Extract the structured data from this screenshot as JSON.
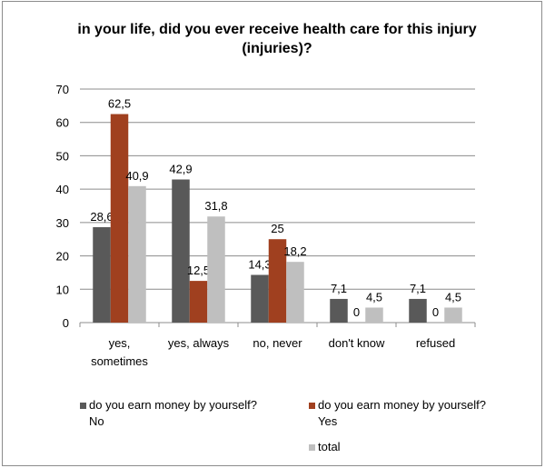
{
  "chart_data": {
    "type": "bar",
    "title": "in your life, did you ever receive health care for this injury (injuries)?",
    "categories": [
      [
        "yes,",
        "sometimes"
      ],
      [
        "yes, always"
      ],
      [
        "no, never"
      ],
      [
        "don't know"
      ],
      [
        "refused"
      ]
    ],
    "series": [
      {
        "name": "do you earn money by yourself? No",
        "color": "#595959",
        "values": [
          28.6,
          42.9,
          14.3,
          7.1,
          7.1
        ],
        "labels": [
          "28,6",
          "42,9",
          "14,3",
          "7,1",
          "7,1"
        ]
      },
      {
        "name": "do you earn money by yourself? Yes",
        "color": "#a0401f",
        "values": [
          62.5,
          12.5,
          25,
          0,
          0
        ],
        "labels": [
          "62,5",
          "12,5",
          "25",
          "0",
          "0"
        ]
      },
      {
        "name": "total",
        "color": "#bfbfbf",
        "values": [
          40.9,
          31.8,
          18.2,
          4.5,
          4.5
        ],
        "labels": [
          "40,9",
          "31,8",
          "18,2",
          "4,5",
          "4,5"
        ]
      }
    ],
    "ylim": [
      0,
      70
    ],
    "yticks": [
      "0",
      "10",
      "20",
      "30",
      "40",
      "50",
      "60",
      "70"
    ],
    "grid": true,
    "legend_position": "bottom",
    "legend": {
      "no_line1": "do you earn money by yourself?",
      "no_line2": "No",
      "yes_line1": "do you earn money by yourself?",
      "yes_line2": "Yes",
      "total": "total"
    }
  }
}
